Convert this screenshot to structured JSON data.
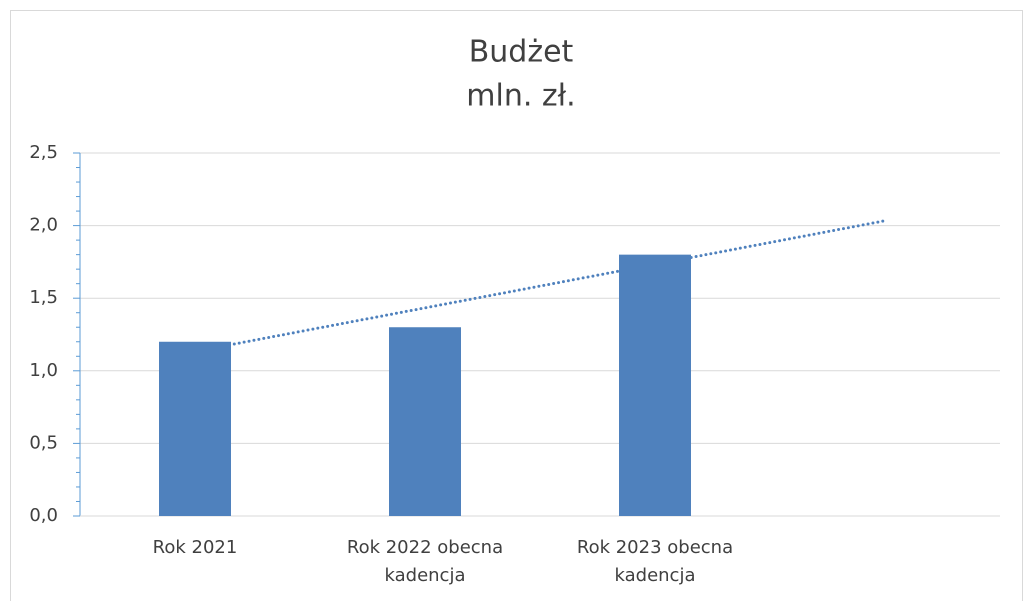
{
  "chart_data": {
    "type": "bar",
    "title": "Budżet",
    "subtitle": "mln. zł.",
    "categories": [
      "Rok 2021",
      "Rok 2022 obecna kadencja",
      "Rok 2023 obecna kadencja",
      null
    ],
    "values": [
      1.2,
      1.3,
      1.8,
      null
    ],
    "color": "#4f81bd",
    "trendline": {
      "type": "linear",
      "color": "#4f81bd",
      "style": "dotted"
    },
    "ylim": [
      0,
      2.5
    ],
    "yticks": [
      {
        "value": 0,
        "label": "0,0"
      },
      {
        "value": 0.5,
        "label": "0,5"
      },
      {
        "value": 1,
        "label": "1,0"
      },
      {
        "value": 1.5,
        "label": "1,5"
      },
      {
        "value": 2,
        "label": "2,0"
      },
      {
        "value": 2.5,
        "label": "2,5"
      }
    ],
    "yminorticks": [
      0.1,
      0.2,
      0.3,
      0.4,
      0.6,
      0.7,
      0.8,
      0.9,
      1.1,
      1.2,
      1.3,
      1.4,
      1.6,
      1.7,
      1.8,
      1.9,
      2.1,
      2.2,
      2.3,
      2.4
    ],
    "grid": true
  }
}
